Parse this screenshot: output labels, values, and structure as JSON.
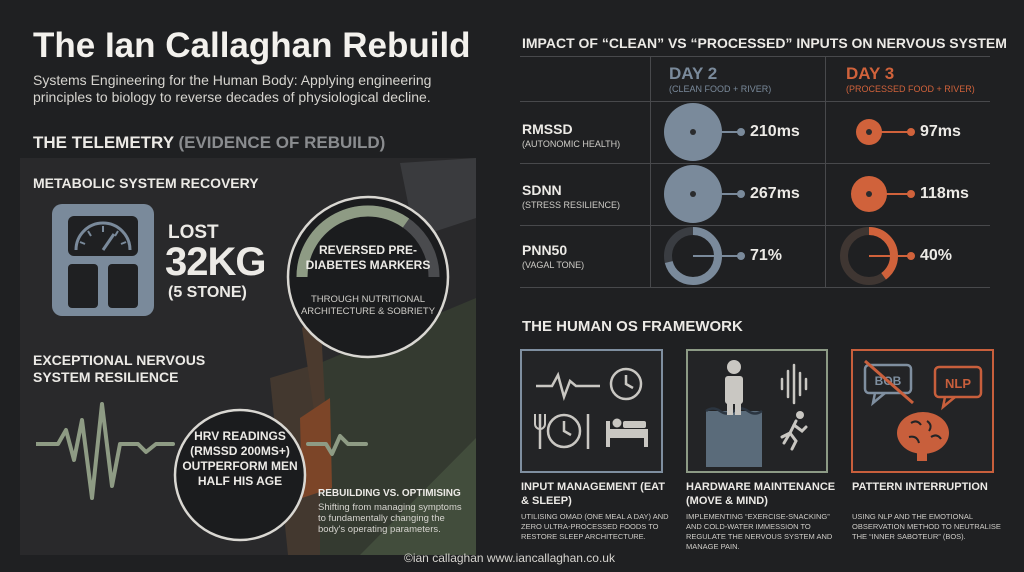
{
  "header": {
    "title": "The Ian Callaghan Rebuild",
    "subtitle": "Systems Engineering for the Human Body: Applying engineering principles to biology to reverse decades of physiological decline."
  },
  "telemetry": {
    "heading_main": "THE TELEMETRY",
    "heading_muted": "(EVIDENCE OF REBUILD)",
    "metabolic": {
      "heading": "METABOLIC SYSTEM RECOVERY",
      "lost_label": "LOST",
      "lost_value": "32KG",
      "lost_sub": "(5 STONE)"
    },
    "diabetes": {
      "title": "REVERSED PRE-DIABETES MARKERS",
      "subtitle": "THROUGH NUTRITIONAL ARCHITECTURE & SOBRIETY"
    },
    "nervous": {
      "heading": "EXCEPTIONAL NERVOUS SYSTEM RESILIENCE",
      "hrv_text": "HRV READINGS (RMSSD 200MS+) OUTPERFORM MEN HALF HIS AGE",
      "rebuild_title": "REBUILDING VS. OPTIMISING",
      "rebuild_desc": "Shifting from managing symptoms to fundamentally changing the body's operating parameters."
    }
  },
  "impact": {
    "heading": "IMPACT OF “CLEAN” VS “PROCESSED” INPUTS ON NERVOUS SYSTEM",
    "days": [
      {
        "label": "DAY 2",
        "sub": "(CLEAN FOOD + RIVER)",
        "color": "#7a8a9b"
      },
      {
        "label": "DAY 3",
        "sub": "(PROCESSED FOOD + RIVER)",
        "color": "#d0623b"
      }
    ],
    "metrics": [
      {
        "name": "RMSSD",
        "sub": "(AUTONOMIC HEALTH)",
        "day2": "210ms",
        "day3": "97ms"
      },
      {
        "name": "SDNN",
        "sub": "(STRESS RESILIENCE)",
        "day2": "267ms",
        "day3": "118ms"
      },
      {
        "name": "PNN50",
        "sub": "(VAGAL TONE)",
        "day2": "71%",
        "day3": "40%"
      }
    ]
  },
  "framework": {
    "heading": "THE HUMAN OS FRAMEWORK",
    "cards": [
      {
        "title": "INPUT MANAGEMENT (EAT & SLEEP)",
        "desc": "UTILISING OMAD (ONE MEAL A DAY) AND ZERO ULTRA-PROCESSED FOODS TO RESTORE SLEEP ARCHITECTURE.",
        "color": "#7f8fa0"
      },
      {
        "title": "HARDWARE MAINTENANCE (MOVE & MIND)",
        "desc": "IMPLEMENTING “EXERCISE-SNACKING” AND COLD-WATER IMMESSION TO REGULATE THE NERVOUS SYSTEM AND MANAGE PAIN.",
        "color": "#8c9a85"
      },
      {
        "title": "PATTERN INTERRUPTION",
        "desc": "USING NLP AND THE EMOTIONAL OBSERVATION METHOD TO NEUTRALISE THE “INNER SABOTEUR” (BOS).",
        "color": "#c85f3c",
        "bubble_left": "BOB",
        "bubble_right": "NLP"
      }
    ]
  },
  "footer": {
    "credit": "©ian callaghan  www.iancallaghan.co.uk"
  }
}
